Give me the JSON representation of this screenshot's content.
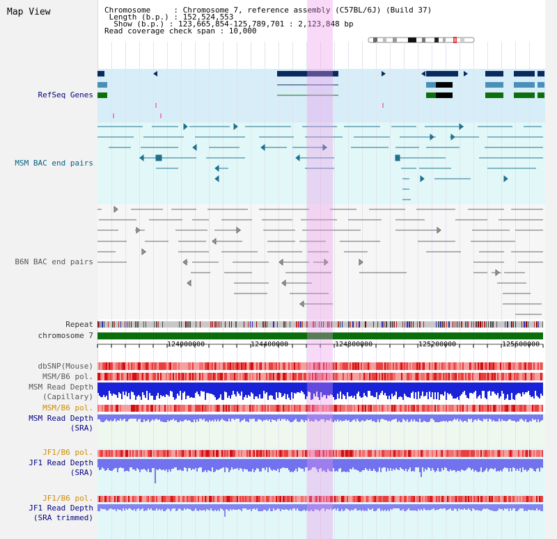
{
  "window": {
    "title": "Map View"
  },
  "header": {
    "lines": [
      "Chromosome     : Chromosome 7, reference assembly (C57BL/6J) (Build 37)",
      " Length (b.p.) : 152,524,553",
      "  Show (b.p.) : 123,665,854-125,789,701 : 2,123,848 bp",
      "Read coverage check span : 10,000"
    ]
  },
  "tracks": {
    "refseq": "RefSeq Genes",
    "msm_bac": "MSM BAC end pairs",
    "b6n_bac": "B6N BAC end pairs",
    "repeat": "Repeat",
    "chromosome": "chromosome 7",
    "dbsnp": "dbSNP(Mouse)",
    "msm_b6_pol": "MSM/B6 pol.",
    "msm_rd_cap_1": "MSM Read Depth",
    "msm_rd_cap_2": "(Capillary)",
    "msm_b6_pol_2": "MSM/B6 pol.",
    "msm_rd_sra_1": "MSM Read Depth",
    "msm_rd_sra_2": "(SRA)",
    "jf1_b6_pol": "JF1/B6 pol.",
    "jf1_rd_sra_1": "JF1 Read Depth",
    "jf1_rd_sra_2": "(SRA)",
    "jf1_b6_pol_2": "JF1/B6 pol.",
    "jf1_rd_trim_1": "JF1 Read Depth",
    "jf1_rd_trim_2": "(SRA trimmed)"
  },
  "axis": {
    "ticks": [
      "124000000",
      "124400000",
      "124800000",
      "125200000",
      "125600000"
    ]
  },
  "colors": {
    "refseq_bg": "#d7edf7",
    "bac_bg": "#e2f8f8",
    "gene_navy": "#0a2a5e",
    "gene_blue": "#4a8fb8",
    "gene_green": "#0d6e0d",
    "highlight": "#f2bff2",
    "msm_blue": "#1a22d8",
    "sra_blue": "#7878f0",
    "chrom_green": "#0a6e0a"
  }
}
